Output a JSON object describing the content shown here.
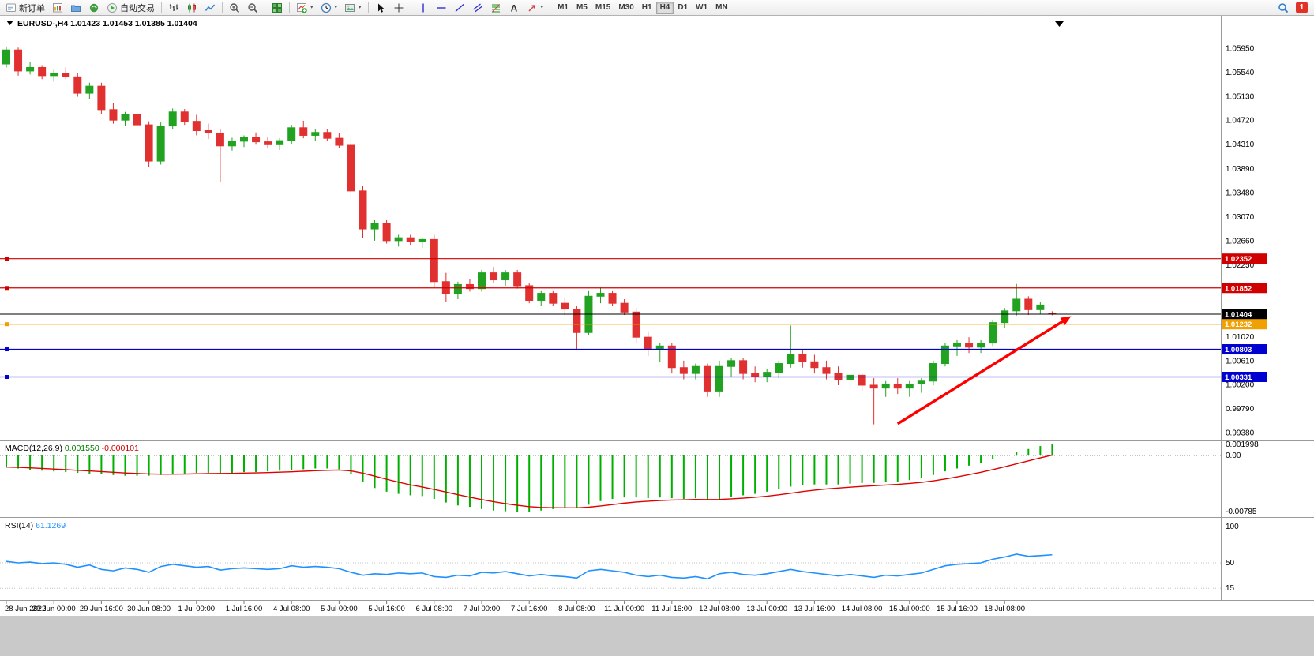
{
  "toolbar": {
    "new_order_label": "新订单",
    "autotrading_label": "自动交易",
    "text_tool_glyph": "A",
    "timeframes": [
      "M1",
      "M5",
      "M15",
      "M30",
      "H1",
      "H4",
      "D1",
      "W1",
      "MN"
    ],
    "active_timeframe": "H4",
    "notification_badge": "1"
  },
  "chart_header": {
    "title": "EURUSD-,H4 1.01423 1.01453 1.01385 1.01404",
    "symbol": "EURUSD-",
    "period": "H4",
    "open": "1.01423",
    "high": "1.01453",
    "low": "1.01385",
    "close": "1.01404"
  },
  "time_axis": {
    "labels": [
      "28 Jun 2022",
      "29 Jun 00:00",
      "29 Jun 16:00",
      "30 Jun 08:00",
      "1 Jul 00:00",
      "1 Jul 16:00",
      "4 Jul 08:00",
      "5 Jul 00:00",
      "5 Jul 16:00",
      "6 Jul 08:00",
      "7 Jul 00:00",
      "7 Jul 16:00",
      "8 Jul 08:00",
      "11 Jul 00:00",
      "11 Jul 16:00",
      "12 Jul 08:00",
      "13 Jul 00:00",
      "13 Jul 16:00",
      "14 Jul 08:00",
      "15 Jul 00:00",
      "15 Jul 16:00",
      "18 Jul 08:00"
    ]
  },
  "chart_data": [
    {
      "type": "candlestick",
      "title": "EURUSD-,H4",
      "ohlc_display": "1.01423 1.01453 1.01385 1.01404",
      "up_color": "#21a321",
      "down_color": "#e03030",
      "y_ticks": [
        "1.05950",
        "1.05540",
        "1.05130",
        "1.04720",
        "1.04310",
        "1.03890",
        "1.03480",
        "1.03070",
        "1.02660",
        "1.02250",
        "1.01840",
        "1.01430",
        "1.01020",
        "1.00610",
        "1.00200",
        "0.99790",
        "0.99380"
      ],
      "levels": [
        {
          "price": "1.02352",
          "color": "#d00000"
        },
        {
          "price": "1.01852",
          "color": "#d00000"
        },
        {
          "price": "1.01404",
          "color": "#000000"
        },
        {
          "price": "1.01232",
          "color": "#f0a000"
        },
        {
          "price": "1.00803",
          "color": "#0000d0"
        },
        {
          "price": "1.00331",
          "color": "#0000d0"
        }
      ],
      "arrow": {
        "from_index": 75,
        "from_price": 0.9953,
        "to_index": 89.6,
        "to_price": 1.0137,
        "color": "#ff0000"
      },
      "candles": [
        [
          1.0568,
          1.0598,
          1.0562,
          1.0592
        ],
        [
          1.0592,
          1.0596,
          1.0548,
          1.0556
        ],
        [
          1.0556,
          1.0572,
          1.055,
          1.0562
        ],
        [
          1.0562,
          1.0566,
          1.0542,
          1.0548
        ],
        [
          1.0548,
          1.0558,
          1.0538,
          1.0552
        ],
        [
          1.0552,
          1.0562,
          1.0542,
          1.0546
        ],
        [
          1.0546,
          1.0552,
          1.0512,
          1.0518
        ],
        [
          1.0518,
          1.0536,
          1.0508,
          1.053
        ],
        [
          1.053,
          1.0536,
          1.0482,
          1.049
        ],
        [
          1.049,
          1.0502,
          1.0466,
          1.0472
        ],
        [
          1.0472,
          1.0486,
          1.0462,
          1.0482
        ],
        [
          1.0482,
          1.0487,
          1.0458,
          1.0464
        ],
        [
          1.0464,
          1.047,
          1.0392,
          1.0402
        ],
        [
          1.0402,
          1.0468,
          1.0396,
          1.0462
        ],
        [
          1.0462,
          1.0492,
          1.0456,
          1.0486
        ],
        [
          1.0486,
          1.0491,
          1.0464,
          1.047
        ],
        [
          1.047,
          1.0481,
          1.0446,
          1.0454
        ],
        [
          1.0454,
          1.0466,
          1.044,
          1.045
        ],
        [
          1.045,
          1.0456,
          1.0366,
          1.0428
        ],
        [
          1.0428,
          1.0442,
          1.042,
          1.0436
        ],
        [
          1.0436,
          1.0446,
          1.0426,
          1.0442
        ],
        [
          1.0442,
          1.0451,
          1.043,
          1.0435
        ],
        [
          1.0435,
          1.0444,
          1.0424,
          1.043
        ],
        [
          1.043,
          1.0441,
          1.0421,
          1.0437
        ],
        [
          1.0437,
          1.0464,
          1.0431,
          1.0459
        ],
        [
          1.0459,
          1.0471,
          1.0441,
          1.0446
        ],
        [
          1.0446,
          1.0456,
          1.0436,
          1.0451
        ],
        [
          1.0451,
          1.0456,
          1.0436,
          1.0441
        ],
        [
          1.0441,
          1.045,
          1.0424,
          1.0429
        ],
        [
          1.0429,
          1.044,
          1.0341,
          1.0351
        ],
        [
          1.0351,
          1.036,
          1.0271,
          1.0286
        ],
        [
          1.0286,
          1.0301,
          1.0266,
          1.0296
        ],
        [
          1.0296,
          1.0301,
          1.0261,
          1.0266
        ],
        [
          1.0266,
          1.0276,
          1.0256,
          1.0271
        ],
        [
          1.0271,
          1.0276,
          1.0259,
          1.0264
        ],
        [
          1.0264,
          1.0271,
          1.0254,
          1.0268
        ],
        [
          1.0268,
          1.0276,
          1.0186,
          1.0196
        ],
        [
          1.0196,
          1.0211,
          1.0161,
          1.0176
        ],
        [
          1.0176,
          1.0196,
          1.0166,
          1.0191
        ],
        [
          1.0191,
          1.0201,
          1.0179,
          1.0184
        ],
        [
          1.0184,
          1.0216,
          1.0179,
          1.0211
        ],
        [
          1.0211,
          1.0221,
          1.0194,
          1.0199
        ],
        [
          1.0199,
          1.0216,
          1.0189,
          1.0211
        ],
        [
          1.0211,
          1.0216,
          1.0184,
          1.0189
        ],
        [
          1.0189,
          1.0194,
          1.0159,
          1.0164
        ],
        [
          1.0164,
          1.0181,
          1.0154,
          1.0176
        ],
        [
          1.0176,
          1.0181,
          1.0154,
          1.0159
        ],
        [
          1.0159,
          1.0169,
          1.0139,
          1.0149
        ],
        [
          1.0149,
          1.0154,
          1.0079,
          1.0109
        ],
        [
          1.0109,
          1.0181,
          1.0104,
          1.0171
        ],
        [
          1.0171,
          1.0186,
          1.0159,
          1.0176
        ],
        [
          1.0176,
          1.0181,
          1.0154,
          1.0159
        ],
        [
          1.0159,
          1.0166,
          1.0139,
          1.0144
        ],
        [
          1.0144,
          1.0151,
          1.0091,
          1.0101
        ],
        [
          1.0101,
          1.0111,
          1.0069,
          1.0079
        ],
        [
          1.0079,
          1.0091,
          1.0059,
          1.0086
        ],
        [
          1.0086,
          1.0091,
          1.0039,
          1.0049
        ],
        [
          1.0049,
          1.0061,
          1.0029,
          1.0039
        ],
        [
          1.0039,
          1.0056,
          1.0029,
          1.0051
        ],
        [
          1.0051,
          1.0056,
          0.9999,
          1.0009
        ],
        [
          1.0009,
          1.0061,
          0.9999,
          1.0051
        ],
        [
          1.0051,
          1.0066,
          1.0034,
          1.0061
        ],
        [
          1.0061,
          1.0066,
          1.0029,
          1.0039
        ],
        [
          1.0039,
          1.0051,
          1.0024,
          1.0034
        ],
        [
          1.0034,
          1.0046,
          1.0024,
          1.0041
        ],
        [
          1.0041,
          1.0061,
          1.0031,
          1.0056
        ],
        [
          1.0056,
          1.0121,
          1.0049,
          1.0071
        ],
        [
          1.0071,
          1.0081,
          1.0049,
          1.0059
        ],
        [
          1.0059,
          1.0071,
          1.0039,
          1.0049
        ],
        [
          1.0049,
          1.0061,
          1.0029,
          1.0039
        ],
        [
          1.0039,
          1.0051,
          1.0019,
          1.0029
        ],
        [
          1.0029,
          1.0041,
          1.0014,
          1.0036
        ],
        [
          1.0036,
          1.0041,
          1.0009,
          1.0019
        ],
        [
          1.0019,
          1.0031,
          0.9952,
          1.0014
        ],
        [
          1.0014,
          1.0026,
          0.9999,
          1.0021
        ],
        [
          1.0021,
          1.0031,
          1.0004,
          1.0014
        ],
        [
          1.0014,
          1.0026,
          0.9999,
          1.0021
        ],
        [
          1.0021,
          1.0031,
          1.0006,
          1.0026
        ],
        [
          1.0026,
          1.0061,
          1.0019,
          1.0056
        ],
        [
          1.0056,
          1.0091,
          1.0051,
          1.0086
        ],
        [
          1.0086,
          1.0096,
          1.0069,
          1.0091
        ],
        [
          1.0091,
          1.0101,
          1.0074,
          1.0084
        ],
        [
          1.0084,
          1.0096,
          1.0074,
          1.0091
        ],
        [
          1.0091,
          1.0131,
          1.0086,
          1.0126
        ],
        [
          1.0126,
          1.0151,
          1.0116,
          1.0146
        ],
        [
          1.0146,
          1.0192,
          1.0138,
          1.0166
        ],
        [
          1.0166,
          1.0171,
          1.0139,
          1.0148
        ],
        [
          1.0148,
          1.0161,
          1.0141,
          1.0156
        ],
        [
          1.01423,
          1.01453,
          1.01385,
          1.01404
        ]
      ]
    },
    {
      "type": "macd",
      "label": "MACD(12,26,9)",
      "main_value": "0.001550",
      "signal_value": "-0.000101",
      "y_ticks": [
        "0.001998",
        "0.00",
        "-0.00785"
      ],
      "colors": {
        "histogram": "#00b000",
        "signal": "#e00000"
      },
      "signal_period": 9,
      "histogram": [
        -0.0016,
        -0.0018,
        -0.002,
        -0.0021,
        -0.0022,
        -0.0023,
        -0.0024,
        -0.0025,
        -0.0026,
        -0.0027,
        -0.0028,
        -0.0028,
        -0.0028,
        -0.0027,
        -0.0026,
        -0.0025,
        -0.0024,
        -0.0024,
        -0.0024,
        -0.0024,
        -0.0023,
        -0.0023,
        -0.0022,
        -0.0021,
        -0.002,
        -0.0019,
        -0.0018,
        -0.0018,
        -0.0019,
        -0.0026,
        -0.0037,
        -0.0045,
        -0.005,
        -0.0053,
        -0.0055,
        -0.0056,
        -0.006,
        -0.0065,
        -0.0069,
        -0.0071,
        -0.0074,
        -0.0076,
        -0.0077,
        -0.0078,
        -0.0078,
        -0.0076,
        -0.0074,
        -0.0073,
        -0.0072,
        -0.0068,
        -0.0063,
        -0.006,
        -0.0058,
        -0.0058,
        -0.0059,
        -0.0058,
        -0.0059,
        -0.006,
        -0.0059,
        -0.0061,
        -0.006,
        -0.0057,
        -0.0055,
        -0.0053,
        -0.005,
        -0.0047,
        -0.0043,
        -0.0041,
        -0.004,
        -0.004,
        -0.004,
        -0.0039,
        -0.0038,
        -0.0038,
        -0.0037,
        -0.0036,
        -0.0034,
        -0.0031,
        -0.0027,
        -0.0022,
        -0.0018,
        -0.0014,
        -0.001,
        -0.0005,
        0.0,
        0.0005,
        0.0009,
        0.0013,
        0.00155
      ]
    },
    {
      "type": "rsi",
      "label": "RSI(14)",
      "value": "61.1269",
      "y_ticks": [
        "100",
        "50",
        "15"
      ],
      "color": "#1e90ff",
      "values": [
        52,
        50,
        51,
        49,
        50,
        48,
        44,
        47,
        41,
        39,
        43,
        41,
        37,
        45,
        48,
        46,
        44,
        45,
        40,
        42,
        43,
        42,
        41,
        42,
        46,
        44,
        45,
        44,
        42,
        37,
        33,
        35,
        34,
        36,
        35,
        36,
        31,
        30,
        33,
        32,
        37,
        36,
        38,
        35,
        32,
        34,
        32,
        31,
        29,
        39,
        41,
        39,
        37,
        33,
        31,
        33,
        30,
        29,
        31,
        28,
        35,
        37,
        34,
        33,
        35,
        38,
        41,
        38,
        36,
        34,
        32,
        34,
        32,
        30,
        33,
        32,
        34,
        36,
        41,
        46,
        48,
        49,
        50,
        55,
        58,
        62,
        59,
        60,
        61.13
      ]
    }
  ]
}
